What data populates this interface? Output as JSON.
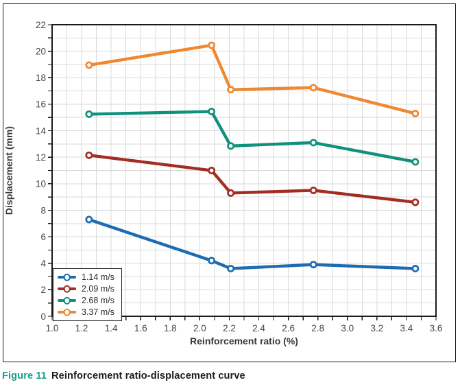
{
  "caption": {
    "label": "Figure 11",
    "text": "Reinforcement ratio-displacement curve"
  },
  "colors": {
    "background": "#ffffff",
    "grid": "#d9d9d9",
    "axis": "#1a1a1a",
    "tick_text": "#454545",
    "axis_title_text": "#383838",
    "caption_accent": "#1f9c8a",
    "caption_text": "#1c1c1c"
  },
  "chart_data": {
    "type": "line",
    "title": "",
    "xlabel": "Reinforcement ratio (%)",
    "ylabel": "Displacement (mm)",
    "xlim": [
      1.0,
      3.6
    ],
    "ylim": [
      0,
      22
    ],
    "grid": true,
    "legend_position": "lower-left",
    "x_minor_tick_step": 0.1,
    "y_minor_tick_step": 1,
    "x_tick_labels": [
      "1.0",
      "1.2",
      "1.4",
      "1.6",
      "1.8",
      "2.0",
      "2.2",
      "2.4",
      "2.6",
      "2.8",
      "3.0",
      "3.2",
      "3.4",
      "3.6"
    ],
    "y_tick_labels": [
      "0",
      "2",
      "4",
      "6",
      "8",
      "10",
      "12",
      "14",
      "16",
      "18",
      "20",
      "22"
    ],
    "x": [
      1.25,
      2.08,
      2.21,
      2.77,
      3.46
    ],
    "series": [
      {
        "name": "1.14 m/s",
        "color": "#1e6cb0",
        "values": [
          7.3,
          4.2,
          3.6,
          3.9,
          3.6
        ]
      },
      {
        "name": "2.09 m/s",
        "color": "#a22d22",
        "values": [
          12.15,
          11.0,
          9.3,
          9.5,
          8.6
        ]
      },
      {
        "name": "2.68 m/s",
        "color": "#10917c",
        "values": [
          15.25,
          15.45,
          12.85,
          13.1,
          11.65
        ]
      },
      {
        "name": "3.37 m/s",
        "color": "#ef8830",
        "values": [
          18.95,
          20.45,
          17.1,
          17.25,
          15.3
        ]
      }
    ]
  }
}
